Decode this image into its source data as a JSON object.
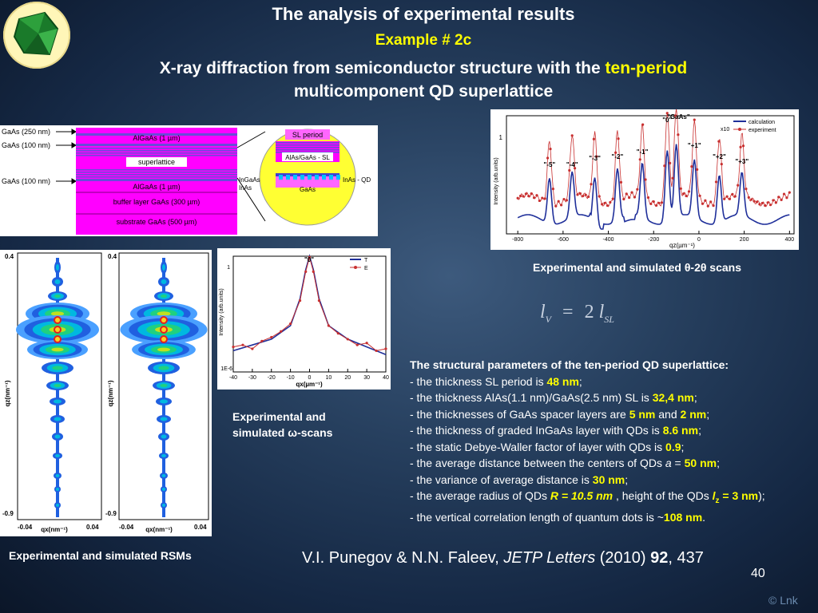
{
  "title": "The analysis of experimental results",
  "example": "Example # 2c",
  "subtitle_pre": "X-ray diffraction from semiconductor structure with the ",
  "subtitle_highlight": "ten-period",
  "subtitle_post": "multicomponent QD superlattice",
  "structure": {
    "left_labels": [
      "GaAs (250 nm)",
      "GaAs (100 nm)",
      "GaAs (100 nm)"
    ],
    "layers": [
      "AlGaAs (1 µm)",
      "superlattice",
      "AlGaAs (1 µm)",
      "buffer layer GaAs (300 µm)",
      "substrate GaAs (500 µm)"
    ],
    "sl": {
      "title": "SL period",
      "sl_label": "AlAs/GaAs - SL",
      "ingaas": "InGaAs",
      "inas": "InAs",
      "inas_qd": "InAs - QD",
      "gaas": "GaAs"
    }
  },
  "theta_scan": {
    "legend": [
      "calculation",
      "experiment"
    ],
    "legend_x10": "x10",
    "ylabel": "Intensity (arb.units)",
    "ytick": "1",
    "xlabel": "qz(µm⁻¹)",
    "xticks": [
      "-800",
      "-600",
      "-400",
      "-200",
      "0",
      "200",
      "400"
    ],
    "peaks": [
      "\"-5\"",
      "\"-4\"",
      "\"-3\"",
      "\"-2\"",
      "\"-1\"",
      "\"0\"",
      "\"GaAs\"",
      "\"+1\"",
      "\"+2\"",
      "\"+3\""
    ],
    "caption": "Experimental and simulated θ-2θ scans"
  },
  "omega_scan": {
    "peak": "\"0\"",
    "legend": [
      "T",
      "E"
    ],
    "ylabel": "Intensity (arb.units)",
    "yticks": [
      "1",
      "1E-6"
    ],
    "xticks": [
      "-40",
      "-30",
      "-20",
      "-10",
      "0",
      "10",
      "20",
      "30",
      "40"
    ],
    "xlabel": "qx(µm⁻¹)",
    "caption": "Experimental and simulated ω-scans",
    "chart_data": {
      "type": "line",
      "series": [
        {
          "name": "T",
          "x": [
            -40,
            -30,
            -20,
            -10,
            -5,
            -2,
            0,
            2,
            5,
            10,
            20,
            30,
            40
          ],
          "y": [
            -4.9,
            -4.6,
            -4.3,
            -3.6,
            -2.2,
            -0.7,
            0,
            -0.7,
            -2.2,
            -3.6,
            -4.3,
            -4.7,
            -5.1
          ]
        },
        {
          "name": "E",
          "x": [
            -40,
            -35,
            -30,
            -25,
            -20,
            -15,
            -10,
            -5,
            -2,
            0,
            2,
            5,
            10,
            15,
            20,
            25,
            30,
            35,
            40
          ],
          "y": [
            -4.7,
            -4.6,
            -4.8,
            -4.4,
            -4.2,
            -3.9,
            -3.5,
            -2.3,
            -0.8,
            -0.05,
            -0.8,
            -2.3,
            -3.6,
            -4.0,
            -4.3,
            -4.6,
            -4.5,
            -4.9,
            -4.8
          ]
        }
      ],
      "ylim": [
        -6,
        0
      ],
      "xlim": [
        -40,
        40
      ]
    }
  },
  "rsm": {
    "yticks": [
      "0.4",
      "-0.9"
    ],
    "ylabel": "qz(nm⁻¹)",
    "xticks": [
      "-0.04",
      "0.04"
    ],
    "xlabel": "qx(nm⁻¹)",
    "caption": "Experimental and simulated RSMs"
  },
  "formula": {
    "l": "l",
    "sub_v": "V",
    "eq": "=",
    "two": "2",
    "sub_sl": "SL"
  },
  "params": {
    "heading": "The structural parameters of the ten-period QD superlattice:",
    "l1a": "- the thickness SL period is ",
    "l1v": "48 nm",
    "l1b": ";",
    "l2a": "- the thickness AlAs(1.1 nm)/GaAs(2.5 nm) SL is ",
    "l2v": "32,4 nm",
    "l2b": ";",
    "l3a": "- the thicknesses of GaAs spacer layers are ",
    "l3v1": "5 nm",
    "l3m": " and ",
    "l3v2": "2 nm",
    "l3b": ";",
    "l4a": "- the thickness of graded InGaAs layer with QDs is ",
    "l4v": "8.6 nm",
    "l4b": ";",
    "l5a": "- the static Debye-Waller factor of layer with QDs  is ",
    "l5v": "0.9",
    "l5b": ";",
    "l6a": "- the average distance between the centers of QDs ",
    "l6s": "a",
    "l6m": " = ",
    "l6v": "50 nm",
    "l6b": ";",
    "l7a": "- the variance of average distance  is ",
    "l7v": "30 nm",
    "l7b": ";",
    "l8a": "- the average radius of QDs ",
    "l8v": "R = 10.5 nm",
    "l8m": " , height of the QDs ",
    "l8s": "l",
    "l8sub": "z",
    "l8e": " = 3 nm",
    "l8b": ");",
    "l9a": "- the vertical correlation length of quantum dots is ~",
    "l9v": "108 nm",
    "l9b": "."
  },
  "reference": {
    "authors": "V.I. Punegov & N.N. Faleev, ",
    "journal": "JETP Letters",
    "year": " (2010) ",
    "volume": "92",
    "pages": ", 437"
  },
  "page_number": "40",
  "copyright": "© Lnk",
  "colors": {
    "accent": "#ffff00",
    "calc": "#1f2f9a",
    "exp": "#c83030"
  }
}
